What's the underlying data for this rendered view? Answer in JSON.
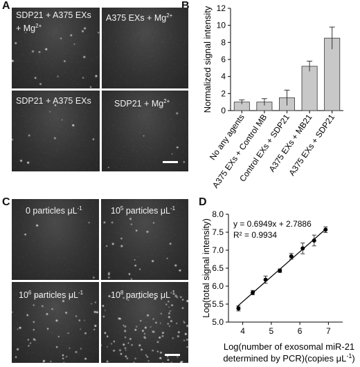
{
  "panels": {
    "A": {
      "letter": "A",
      "tiles": [
        {
          "line1": "SDP21 + A375 EXs",
          "line2": "+ Mg",
          "sup": "2+",
          "density": 1
        },
        {
          "line1": "A375 EXs + Mg",
          "line2": "",
          "sup": "2+",
          "density": 0
        },
        {
          "line1": "SDP21 + A375 EXs",
          "line2": "",
          "sup": "",
          "density": 0.5
        },
        {
          "line1": "SDP21 + Mg",
          "line2": "",
          "sup": "2+",
          "density": 0.3
        }
      ]
    },
    "B": {
      "letter": "B"
    },
    "C": {
      "letter": "C",
      "tiles": [
        {
          "text": "0 particles μL",
          "exp": "-1",
          "base_exp": "",
          "density": 0.2
        },
        {
          "text": " particles μL",
          "exp": "-1",
          "base": "10",
          "base_exp": "5",
          "density": 1.2
        },
        {
          "text": " particles μL",
          "exp": "-1",
          "base": "10",
          "base_exp": "6",
          "density": 2.5
        },
        {
          "text": " particles μL",
          "exp": "-1",
          "base": "10",
          "base_exp": "8",
          "density": 5
        }
      ]
    },
    "D": {
      "letter": "D"
    }
  },
  "chart_data": [
    {
      "type": "bar",
      "categories": [
        "No any agents",
        "A375 EXs + Control MB",
        "Control EXs + SDP21",
        "A375 EXs + MB21",
        "A375 EXs + SDP21"
      ],
      "values": [
        1.0,
        1.0,
        1.5,
        5.2,
        8.5
      ],
      "errors": [
        0.25,
        0.4,
        0.9,
        0.6,
        1.3
      ],
      "ylabel": "Normalized signal intensity",
      "xlabel": "",
      "ylim": [
        0,
        12
      ],
      "yticks": [
        0,
        2,
        4,
        6,
        8,
        10,
        12
      ],
      "bar_color": "#c8c8c8"
    },
    {
      "type": "scatter",
      "x": [
        3.85,
        4.35,
        4.8,
        5.3,
        5.7,
        6.1,
        6.5,
        6.9
      ],
      "y": [
        5.38,
        5.82,
        6.18,
        6.43,
        6.83,
        7.05,
        7.27,
        7.57
      ],
      "errors": [
        0.07,
        0.06,
        0.1,
        0.05,
        0.08,
        0.15,
        0.15,
        0.08
      ],
      "fit": {
        "slope": 0.6949,
        "intercept": 2.7886
      },
      "equation": "y = 0.6949x + 2.7886",
      "r2": "R² = 0.9934",
      "ylabel": "Log(total signal intensity)",
      "xlabel_line1": "Log(number of exosomal miR-21",
      "xlabel_line2_prefix": "determined by PCR)(copies μL",
      "xlabel_line2_exp": "-1",
      "xlabel_line2_suffix": ")",
      "xlim": [
        3.5,
        7.5
      ],
      "ylim": [
        5.0,
        8.0
      ],
      "xticks": [
        4,
        5,
        6,
        7
      ],
      "yticks": [
        5.0,
        5.5,
        6.0,
        6.5,
        7.0,
        7.5,
        8.0
      ]
    }
  ]
}
